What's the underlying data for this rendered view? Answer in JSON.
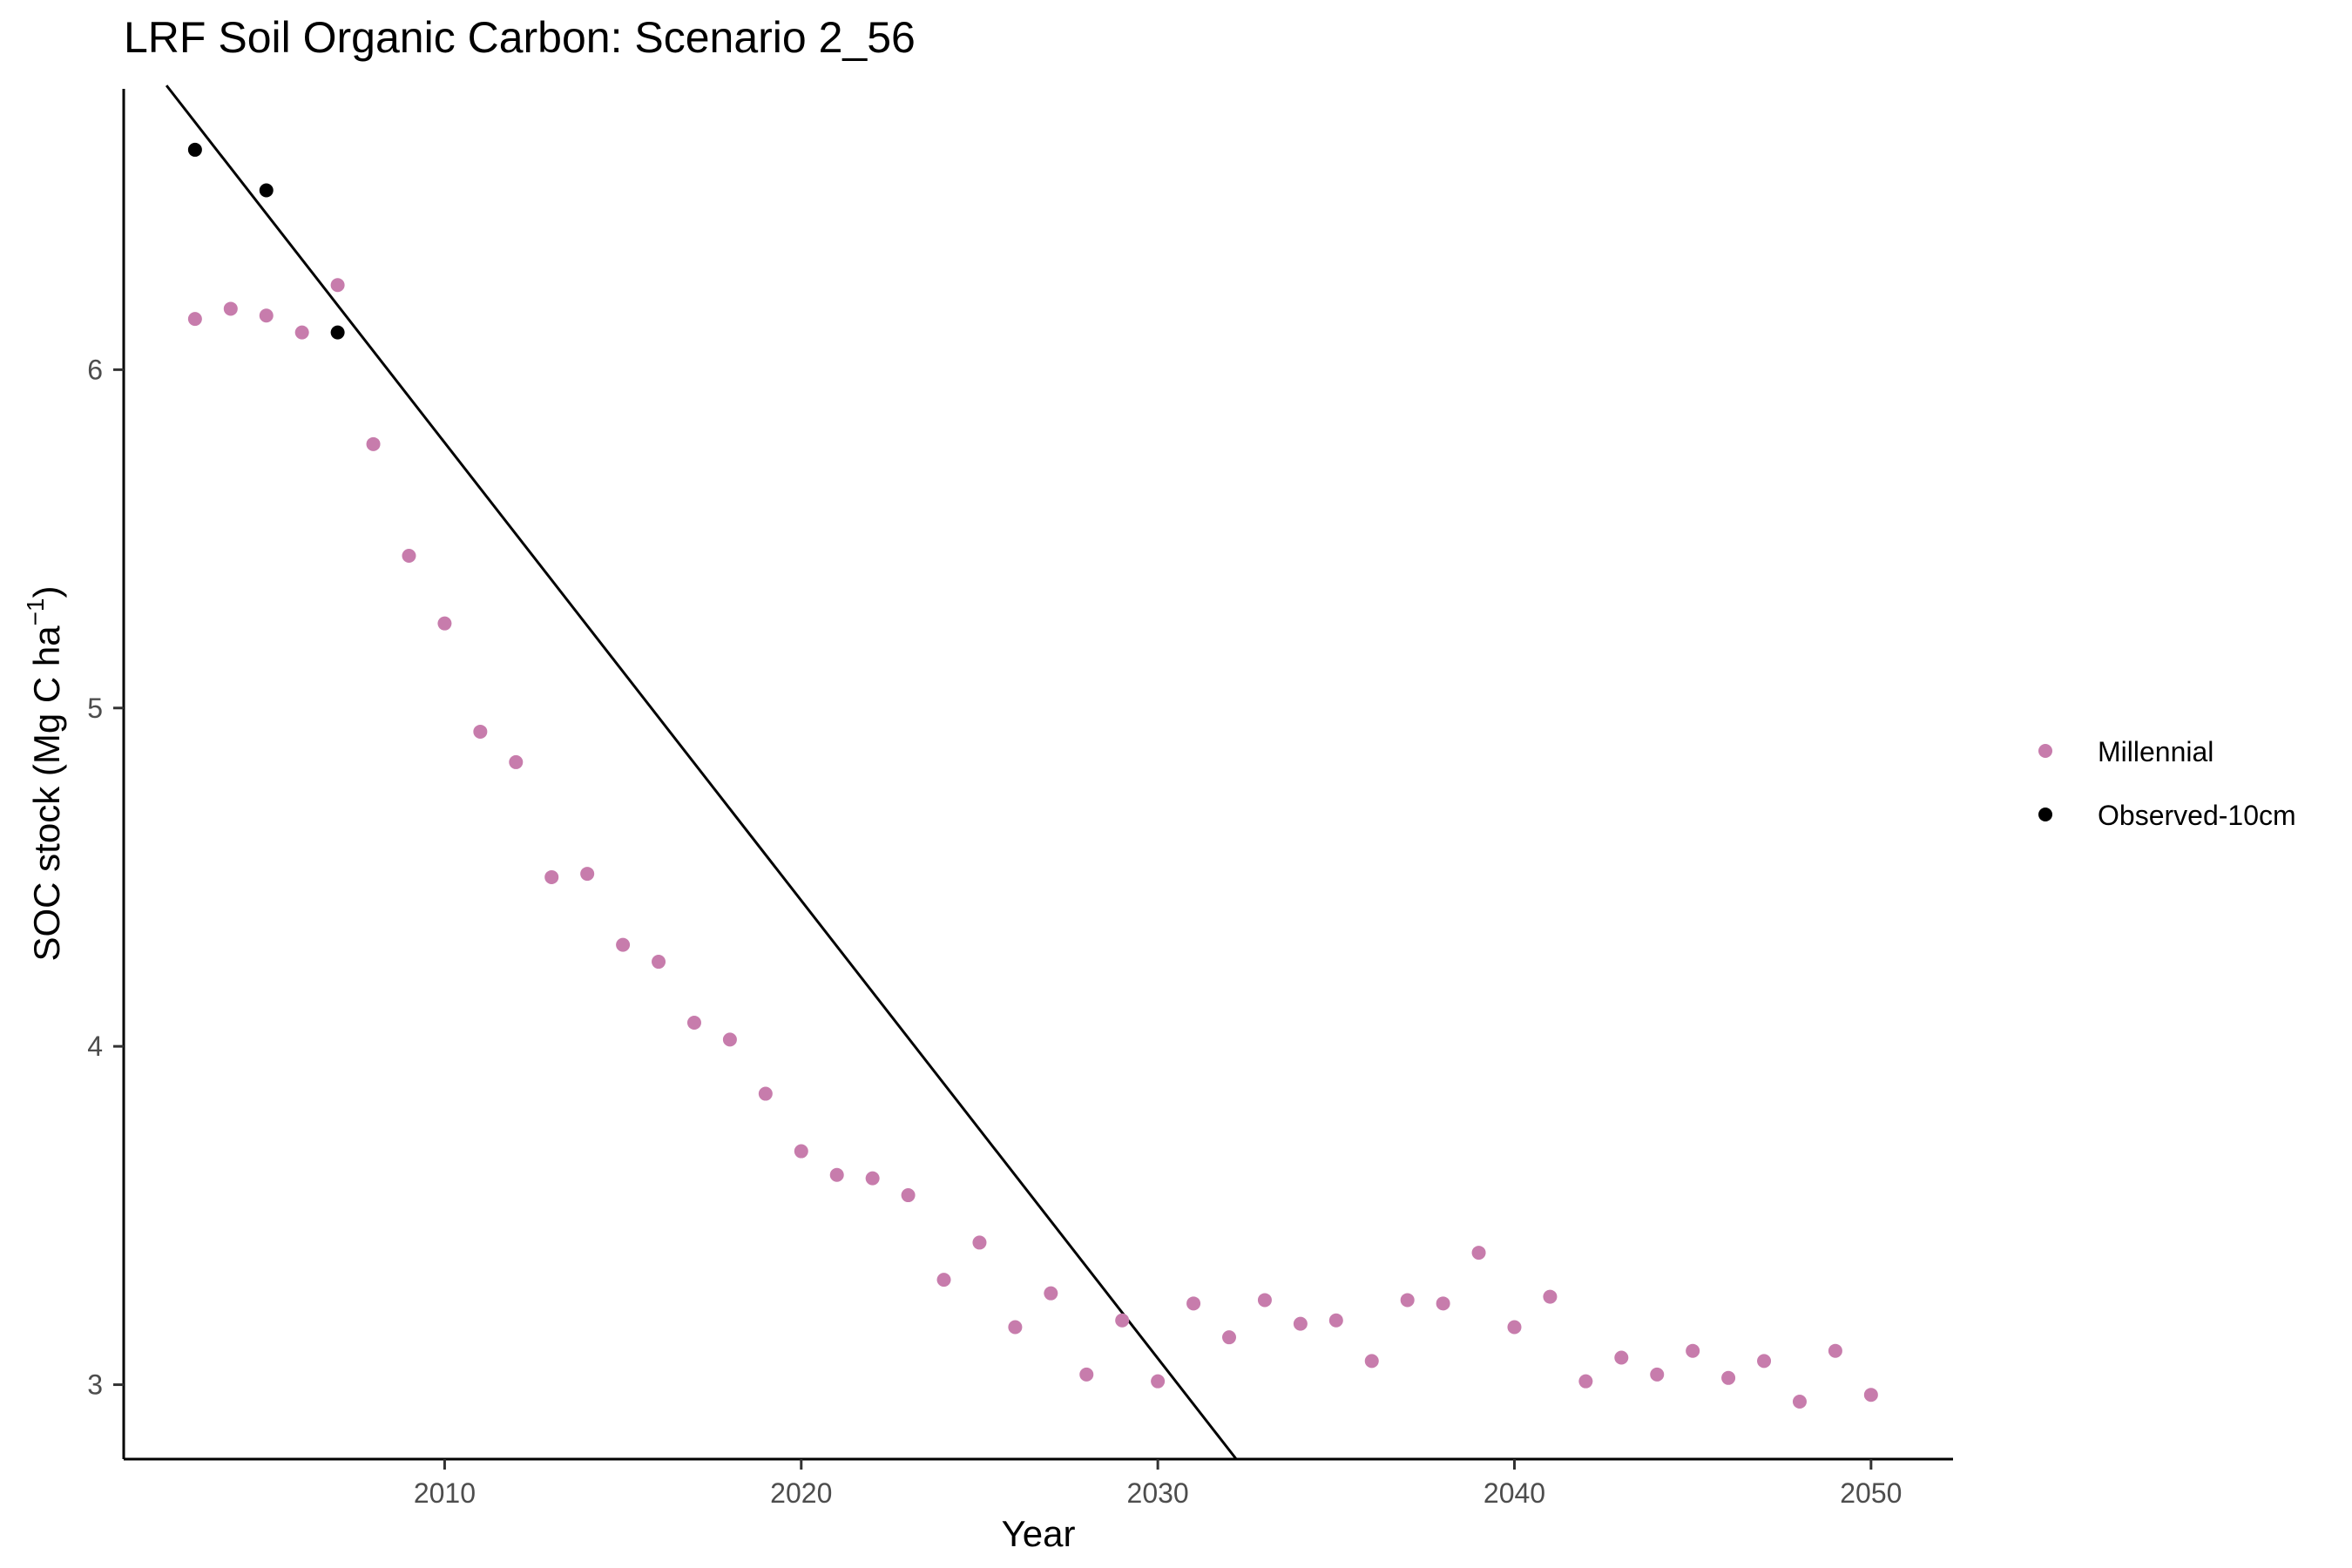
{
  "chart_data": {
    "type": "scatter",
    "title": "LRF Soil Organic Carbon: Scenario  2_56",
    "xlabel": "Year",
    "ylabel": "SOC stock (Mg C ha",
    "ylabel_superscript": "−1",
    "ylabel_close": ")",
    "xlim": [
      2001.0,
      2052.3
    ],
    "ylim": [
      2.78,
      6.83
    ],
    "x_ticks": [
      2010,
      2020,
      2030,
      2040,
      2050
    ],
    "y_ticks": [
      3,
      4,
      5,
      6
    ],
    "grid": false,
    "legend_position": "right",
    "series": [
      {
        "name": "Millennial",
        "color": "#c77cac",
        "x": [
          2003,
          2004,
          2005,
          2006,
          2007,
          2008,
          2009,
          2010,
          2011,
          2012,
          2013,
          2014,
          2015,
          2016,
          2017,
          2018,
          2019,
          2020,
          2021,
          2022,
          2023,
          2024,
          2025,
          2026,
          2027,
          2028,
          2029,
          2030,
          2031,
          2032,
          2033,
          2034,
          2035,
          2036,
          2037,
          2038,
          2039,
          2040,
          2041,
          2042,
          2043,
          2044,
          2045,
          2046,
          2047,
          2048,
          2049,
          2050
        ],
        "y": [
          6.15,
          6.18,
          6.16,
          6.11,
          6.25,
          5.78,
          5.45,
          5.25,
          4.93,
          4.84,
          4.5,
          4.51,
          4.3,
          4.25,
          4.07,
          4.02,
          3.86,
          3.69,
          3.62,
          3.61,
          3.56,
          3.31,
          3.42,
          3.17,
          3.27,
          3.03,
          3.19,
          3.01,
          3.24,
          3.14,
          3.25,
          3.18,
          3.19,
          3.07,
          3.25,
          3.24,
          3.39,
          3.17,
          3.26,
          3.01,
          3.08,
          3.03,
          3.1,
          3.02,
          3.07,
          2.95,
          3.1,
          2.97
        ]
      },
      {
        "name": "Observed-10cm",
        "color": "#000000",
        "x": [
          2003,
          2005,
          2007
        ],
        "y": [
          6.65,
          6.53,
          6.11
        ]
      }
    ],
    "trend_line": {
      "color": "#000000",
      "x": [
        2002.2,
        2032.2
      ],
      "y": [
        6.84,
        2.78
      ]
    }
  }
}
